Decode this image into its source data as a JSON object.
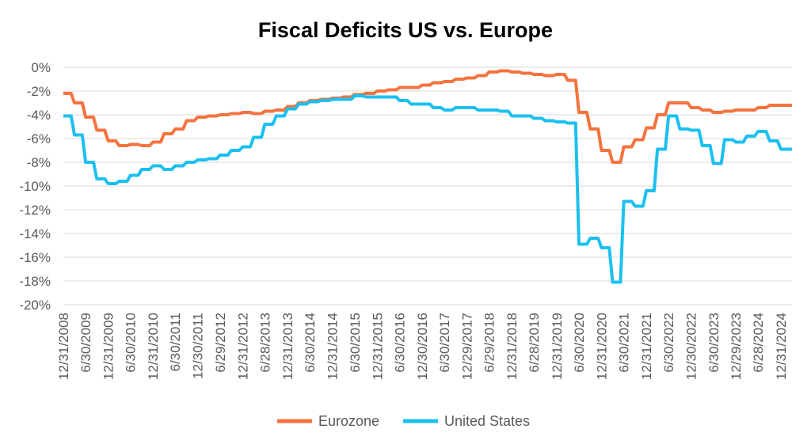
{
  "chart_data": {
    "type": "line",
    "title": "Fiscal Deficits US vs. Europe",
    "xlabel": "",
    "ylabel": "",
    "ylim": [
      -20,
      0
    ],
    "yticks": [
      "0%",
      "-2%",
      "-4%",
      "-6%",
      "-8%",
      "-10%",
      "-12%",
      "-14%",
      "-16%",
      "-18%",
      "-20%"
    ],
    "ytick_values": [
      0,
      -2,
      -4,
      -6,
      -8,
      -10,
      -12,
      -14,
      -16,
      -18,
      -20
    ],
    "xticks": [
      "12/31/2008",
      "6/30/2009",
      "12/31/2009",
      "6/30/2010",
      "12/31/2010",
      "6/30/2011",
      "12/30/2011",
      "6/29/2012",
      "12/31/2012",
      "6/28/2013",
      "12/31/2013",
      "6/30/2014",
      "12/31/2014",
      "6/30/2015",
      "12/31/2015",
      "6/30/2016",
      "12/30/2016",
      "6/30/2017",
      "12/29/2017",
      "6/29/2018",
      "12/31/2018",
      "6/28/2019",
      "12/31/2019",
      "6/30/2020",
      "12/31/2020",
      "6/30/2021",
      "12/31/2021",
      "6/30/2022",
      "12/30/2022",
      "6/30/2023",
      "12/29/2023",
      "6/28/2024",
      "12/31/2024"
    ],
    "x_range": [
      "12/31/2008",
      "3/31/2025"
    ],
    "grid": true,
    "legend_position": "bottom",
    "series": [
      {
        "name": "Eurozone",
        "color": "#F4733F",
        "points": [
          [
            "12/31/2008",
            -2.2
          ],
          [
            "3/31/2009",
            -3.0
          ],
          [
            "6/30/2009",
            -4.2
          ],
          [
            "9/30/2009",
            -5.3
          ],
          [
            "12/31/2009",
            -6.2
          ],
          [
            "3/31/2010",
            -6.6
          ],
          [
            "6/30/2010",
            -6.5
          ],
          [
            "9/30/2010",
            -6.6
          ],
          [
            "12/31/2010",
            -6.3
          ],
          [
            "3/31/2011",
            -5.6
          ],
          [
            "6/30/2011",
            -5.2
          ],
          [
            "9/30/2011",
            -4.5
          ],
          [
            "12/30/2011",
            -4.2
          ],
          [
            "3/30/2012",
            -4.1
          ],
          [
            "6/29/2012",
            -4.0
          ],
          [
            "9/28/2012",
            -3.9
          ],
          [
            "12/31/2012",
            -3.8
          ],
          [
            "3/29/2013",
            -3.9
          ],
          [
            "6/28/2013",
            -3.7
          ],
          [
            "9/30/2013",
            -3.6
          ],
          [
            "12/31/2013",
            -3.3
          ],
          [
            "3/31/2014",
            -3.0
          ],
          [
            "6/30/2014",
            -2.8
          ],
          [
            "9/30/2014",
            -2.7
          ],
          [
            "12/31/2014",
            -2.6
          ],
          [
            "3/31/2015",
            -2.5
          ],
          [
            "6/30/2015",
            -2.3
          ],
          [
            "9/30/2015",
            -2.2
          ],
          [
            "12/31/2015",
            -2.0
          ],
          [
            "3/31/2016",
            -1.9
          ],
          [
            "6/30/2016",
            -1.7
          ],
          [
            "9/30/2016",
            -1.7
          ],
          [
            "12/30/2016",
            -1.5
          ],
          [
            "3/31/2017",
            -1.3
          ],
          [
            "6/30/2017",
            -1.2
          ],
          [
            "9/29/2017",
            -1.0
          ],
          [
            "12/29/2017",
            -0.9
          ],
          [
            "3/30/2018",
            -0.7
          ],
          [
            "6/29/2018",
            -0.4
          ],
          [
            "9/28/2018",
            -0.3
          ],
          [
            "12/31/2018",
            -0.4
          ],
          [
            "3/29/2019",
            -0.5
          ],
          [
            "6/28/2019",
            -0.6
          ],
          [
            "9/30/2019",
            -0.7
          ],
          [
            "12/31/2019",
            -0.6
          ],
          [
            "3/31/2020",
            -1.1
          ],
          [
            "6/30/2020",
            -3.8
          ],
          [
            "9/30/2020",
            -5.2
          ],
          [
            "12/31/2020",
            -7.0
          ],
          [
            "3/31/2021",
            -8.0
          ],
          [
            "6/30/2021",
            -6.7
          ],
          [
            "9/30/2021",
            -6.1
          ],
          [
            "12/31/2021",
            -5.1
          ],
          [
            "3/31/2022",
            -4.0
          ],
          [
            "6/30/2022",
            -3.0
          ],
          [
            "9/30/2022",
            -3.0
          ],
          [
            "12/30/2022",
            -3.4
          ],
          [
            "3/31/2023",
            -3.6
          ],
          [
            "6/30/2023",
            -3.8
          ],
          [
            "9/29/2023",
            -3.7
          ],
          [
            "12/29/2023",
            -3.6
          ],
          [
            "3/28/2024",
            -3.6
          ],
          [
            "6/28/2024",
            -3.4
          ],
          [
            "9/30/2024",
            -3.2
          ],
          [
            "12/31/2024",
            -3.2
          ],
          [
            "3/31/2025",
            -3.2
          ]
        ]
      },
      {
        "name": "United States",
        "color": "#1CC0F0",
        "points": [
          [
            "12/31/2008",
            -4.1
          ],
          [
            "3/31/2009",
            -5.7
          ],
          [
            "6/30/2009",
            -8.0
          ],
          [
            "9/30/2009",
            -9.4
          ],
          [
            "12/31/2009",
            -9.8
          ],
          [
            "3/31/2010",
            -9.6
          ],
          [
            "6/30/2010",
            -9.1
          ],
          [
            "9/30/2010",
            -8.6
          ],
          [
            "12/31/2010",
            -8.3
          ],
          [
            "3/31/2011",
            -8.6
          ],
          [
            "6/30/2011",
            -8.3
          ],
          [
            "9/30/2011",
            -8.0
          ],
          [
            "12/30/2011",
            -7.8
          ],
          [
            "3/30/2012",
            -7.7
          ],
          [
            "6/29/2012",
            -7.4
          ],
          [
            "9/28/2012",
            -7.0
          ],
          [
            "12/31/2012",
            -6.7
          ],
          [
            "3/29/2013",
            -5.9
          ],
          [
            "6/28/2013",
            -4.8
          ],
          [
            "9/30/2013",
            -4.1
          ],
          [
            "12/31/2013",
            -3.5
          ],
          [
            "3/31/2014",
            -3.1
          ],
          [
            "6/30/2014",
            -2.9
          ],
          [
            "9/30/2014",
            -2.8
          ],
          [
            "12/31/2014",
            -2.7
          ],
          [
            "3/31/2015",
            -2.7
          ],
          [
            "6/30/2015",
            -2.4
          ],
          [
            "9/30/2015",
            -2.5
          ],
          [
            "12/31/2015",
            -2.5
          ],
          [
            "3/31/2016",
            -2.5
          ],
          [
            "6/30/2016",
            -2.8
          ],
          [
            "9/30/2016",
            -3.1
          ],
          [
            "12/30/2016",
            -3.1
          ],
          [
            "3/31/2017",
            -3.4
          ],
          [
            "6/30/2017",
            -3.6
          ],
          [
            "9/29/2017",
            -3.4
          ],
          [
            "12/29/2017",
            -3.4
          ],
          [
            "3/30/2018",
            -3.6
          ],
          [
            "6/29/2018",
            -3.6
          ],
          [
            "9/28/2018",
            -3.7
          ],
          [
            "12/31/2018",
            -4.1
          ],
          [
            "3/29/2019",
            -4.1
          ],
          [
            "6/28/2019",
            -4.3
          ],
          [
            "9/30/2019",
            -4.5
          ],
          [
            "12/31/2019",
            -4.6
          ],
          [
            "3/31/2020",
            -4.7
          ],
          [
            "6/30/2020",
            -14.9
          ],
          [
            "9/30/2020",
            -14.4
          ],
          [
            "12/31/2020",
            -15.2
          ],
          [
            "3/31/2021",
            -18.1
          ],
          [
            "6/30/2021",
            -11.3
          ],
          [
            "9/30/2021",
            -11.7
          ],
          [
            "12/31/2021",
            -10.4
          ],
          [
            "3/31/2022",
            -6.9
          ],
          [
            "6/30/2022",
            -4.1
          ],
          [
            "9/30/2022",
            -5.2
          ],
          [
            "12/30/2022",
            -5.3
          ],
          [
            "3/31/2023",
            -6.6
          ],
          [
            "6/30/2023",
            -8.1
          ],
          [
            "9/29/2023",
            -6.1
          ],
          [
            "12/29/2023",
            -6.3
          ],
          [
            "3/28/2024",
            -5.8
          ],
          [
            "6/28/2024",
            -5.4
          ],
          [
            "9/30/2024",
            -6.2
          ],
          [
            "12/31/2024",
            -6.9
          ],
          [
            "3/31/2025",
            -6.9
          ]
        ]
      }
    ]
  }
}
